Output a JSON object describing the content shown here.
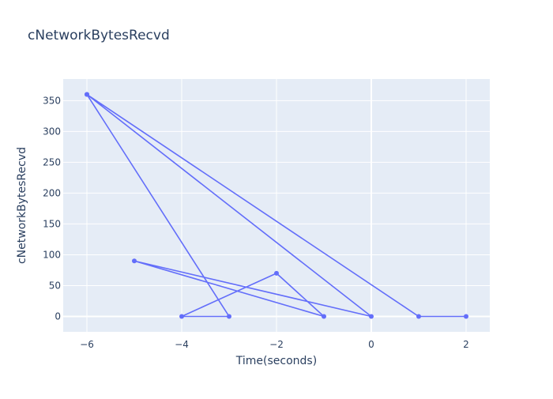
{
  "chart_data": {
    "type": "line",
    "title": "cNetworkBytesRecvd",
    "xlabel": "Time(seconds)",
    "ylabel": "cNetworkBytesRecvd",
    "xlim": [
      -6.5,
      2.5
    ],
    "ylim": [
      -25,
      385
    ],
    "x_ticks": [
      -6,
      -4,
      -2,
      0,
      2
    ],
    "y_ticks": [
      0,
      50,
      100,
      150,
      200,
      250,
      300,
      350
    ],
    "grid": true,
    "series": [
      {
        "color": "#636efa",
        "markers": true,
        "points": [
          {
            "x": -6,
            "y": 360
          },
          {
            "x": -3,
            "y": 0
          },
          {
            "x": -4,
            "y": 0
          },
          {
            "x": -2,
            "y": 70
          },
          {
            "x": -1,
            "y": 0
          },
          {
            "x": -5,
            "y": 90
          },
          {
            "x": 0,
            "y": 0
          },
          {
            "x": -6,
            "y": 360
          },
          {
            "x": 1,
            "y": 0
          },
          {
            "x": 2,
            "y": 0
          }
        ]
      }
    ]
  },
  "colors": {
    "plot_background": "#e5ecf6",
    "paper_background": "#ffffff",
    "text": "#2a3f5f"
  }
}
